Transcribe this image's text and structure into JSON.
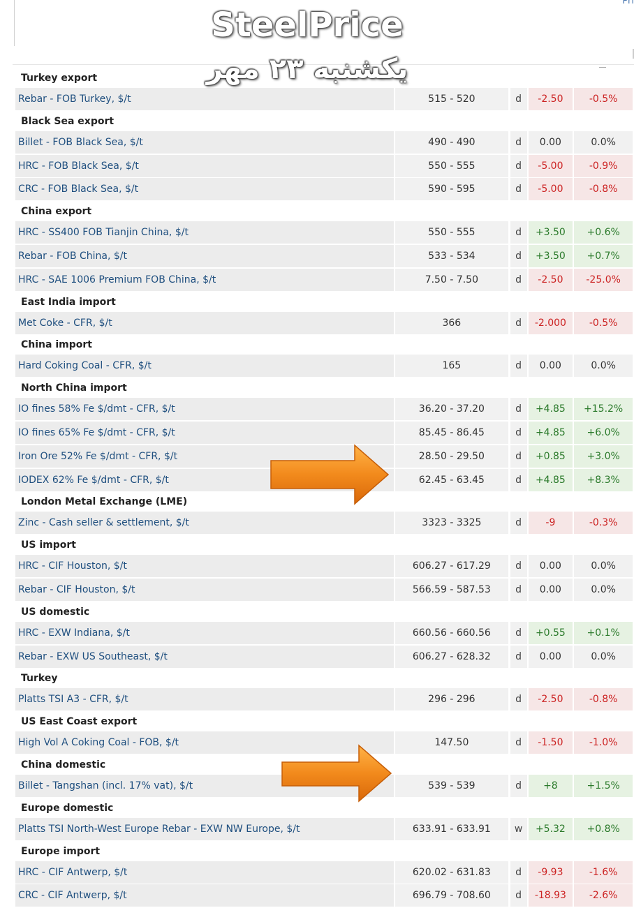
{
  "corner_text": "Pri",
  "watermark": {
    "title": "SteelPrice",
    "date": "یکشنبه ۲۳ مهر"
  },
  "sections": [
    {
      "title": "Turkey export",
      "rows": [
        {
          "name": "Rebar - FOB Turkey, $/t",
          "range": "515 - 520",
          "unit": "d",
          "change": "-2.50",
          "pct": "-0.5%",
          "trend": "down"
        }
      ]
    },
    {
      "title": "Black Sea export",
      "rows": [
        {
          "name": "Billet - FOB Black Sea, $/t",
          "range": "490 - 490",
          "unit": "d",
          "change": "0.00",
          "pct": "0.0%",
          "trend": "flat"
        },
        {
          "name": "HRC - FOB Black Sea, $/t",
          "range": "550 - 555",
          "unit": "d",
          "change": "-5.00",
          "pct": "-0.9%",
          "trend": "down"
        },
        {
          "name": "CRC - FOB Black Sea, $/t",
          "range": "590 - 595",
          "unit": "d",
          "change": "-5.00",
          "pct": "-0.8%",
          "trend": "down"
        }
      ]
    },
    {
      "title": "China export",
      "rows": [
        {
          "name": "HRC - SS400 FOB Tianjin China, $/t",
          "range": "550 - 555",
          "unit": "d",
          "change": "+3.50",
          "pct": "+0.6%",
          "trend": "up"
        },
        {
          "name": "Rebar - FOB China, $/t",
          "range": "533 - 534",
          "unit": "d",
          "change": "+3.50",
          "pct": "+0.7%",
          "trend": "up"
        },
        {
          "name": "HRC - SAE 1006 Premium FOB China, $/t",
          "range": "7.50 - 7.50",
          "unit": "d",
          "change": "-2.50",
          "pct": "-25.0%",
          "trend": "down"
        }
      ]
    },
    {
      "title": "East India import",
      "rows": [
        {
          "name": "Met Coke - CFR, $/t",
          "range": "366",
          "unit": "d",
          "change": "-2.000",
          "pct": "-0.5%",
          "trend": "down"
        }
      ]
    },
    {
      "title": "China import",
      "rows": [
        {
          "name": "Hard Coking Coal - CFR, $/t",
          "range": "165",
          "unit": "d",
          "change": "0.00",
          "pct": "0.0%",
          "trend": "flat"
        }
      ]
    },
    {
      "title": "North China import",
      "rows": [
        {
          "name": "IO fines 58% Fe $/dmt - CFR, $/t",
          "range": "36.20 - 37.20",
          "unit": "d",
          "change": "+4.85",
          "pct": "+15.2%",
          "trend": "up"
        },
        {
          "name": "IO fines 65% Fe $/dmt - CFR, $/t",
          "range": "85.45 - 86.45",
          "unit": "d",
          "change": "+4.85",
          "pct": "+6.0%",
          "trend": "up"
        },
        {
          "name": "Iron Ore 52% Fe $/dmt - CFR, $/t",
          "range": "28.50 - 29.50",
          "unit": "d",
          "change": "+0.85",
          "pct": "+3.0%",
          "trend": "up"
        },
        {
          "name": "IODEX 62% Fe $/dmt - CFR, $/t",
          "range": "62.45 - 63.45",
          "unit": "d",
          "change": "+4.85",
          "pct": "+8.3%",
          "trend": "up"
        }
      ]
    },
    {
      "title": "London Metal Exchange (LME)",
      "rows": [
        {
          "name": "Zinc - Cash seller & settlement, $/t",
          "range": "3323 - 3325",
          "unit": "d",
          "change": "-9",
          "pct": "-0.3%",
          "trend": "down"
        }
      ]
    },
    {
      "title": "US import",
      "rows": [
        {
          "name": "HRC - CIF Houston, $/t",
          "range": "606.27 - 617.29",
          "unit": "d",
          "change": "0.00",
          "pct": "0.0%",
          "trend": "flat"
        },
        {
          "name": "Rebar - CIF Houston, $/t",
          "range": "566.59 - 587.53",
          "unit": "d",
          "change": "0.00",
          "pct": "0.0%",
          "trend": "flat"
        }
      ]
    },
    {
      "title": "US domestic",
      "rows": [
        {
          "name": "HRC - EXW Indiana, $/t",
          "range": "660.56 - 660.56",
          "unit": "d",
          "change": "+0.55",
          "pct": "+0.1%",
          "trend": "up"
        },
        {
          "name": "Rebar - EXW US Southeast, $/t",
          "range": "606.27 - 628.32",
          "unit": "d",
          "change": "0.00",
          "pct": "0.0%",
          "trend": "flat"
        }
      ]
    },
    {
      "title": "Turkey",
      "rows": [
        {
          "name": "Platts TSI A3 - CFR, $/t",
          "range": "296 - 296",
          "unit": "d",
          "change": "-2.50",
          "pct": "-0.8%",
          "trend": "down"
        }
      ]
    },
    {
      "title": "US East Coast export",
      "rows": [
        {
          "name": "High Vol A Coking Coal - FOB, $/t",
          "range": "147.50",
          "unit": "d",
          "change": "-1.50",
          "pct": "-1.0%",
          "trend": "down"
        }
      ]
    },
    {
      "title": "China domestic",
      "rows": [
        {
          "name": "Billet - Tangshan (incl. 17% vat), $/t",
          "range": "539 - 539",
          "unit": "d",
          "change": "+8",
          "pct": "+1.5%",
          "trend": "up"
        }
      ]
    },
    {
      "title": "Europe domestic",
      "rows": [
        {
          "name": "Platts TSI North-West Europe Rebar - EXW NW Europe, $/t",
          "range": "633.91 - 633.91",
          "unit": "w",
          "change": "+5.32",
          "pct": "+0.8%",
          "trend": "up"
        }
      ]
    },
    {
      "title": "Europe import",
      "rows": [
        {
          "name": "HRC - CIF Antwerp, $/t",
          "range": "620.02 - 631.83",
          "unit": "d",
          "change": "-9.93",
          "pct": "-1.6%",
          "trend": "down"
        },
        {
          "name": "CRC - CIF Antwerp, $/t",
          "range": "696.79 - 708.60",
          "unit": "d",
          "change": "-18.93",
          "pct": "-2.6%",
          "trend": "down"
        }
      ]
    }
  ],
  "colors": {
    "down": "#cc2222",
    "up": "#2b7a2b",
    "arrow": "#f28a1c"
  }
}
